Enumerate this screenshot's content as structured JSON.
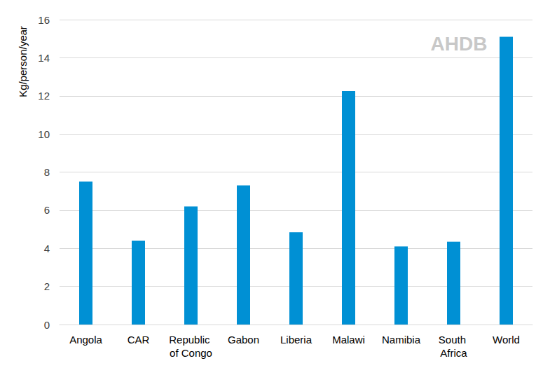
{
  "chart_data": {
    "type": "bar",
    "y_label": "Kg/person/year",
    "annotations": [
      "AHDB"
    ],
    "categories": [
      "Angola",
      "CAR",
      "Republic of Congo",
      "Gabon",
      "Liberia",
      "Malawi",
      "Namibia",
      "South Africa",
      "World"
    ],
    "values": [
      7.5,
      4.4,
      6.2,
      7.3,
      4.85,
      12.25,
      4.1,
      4.35,
      15.1
    ],
    "color": "#0090d4",
    "ylim": [
      0,
      16
    ],
    "yticks": [
      0,
      2,
      4,
      6,
      8,
      10,
      12,
      14,
      16
    ],
    "grid": true
  }
}
